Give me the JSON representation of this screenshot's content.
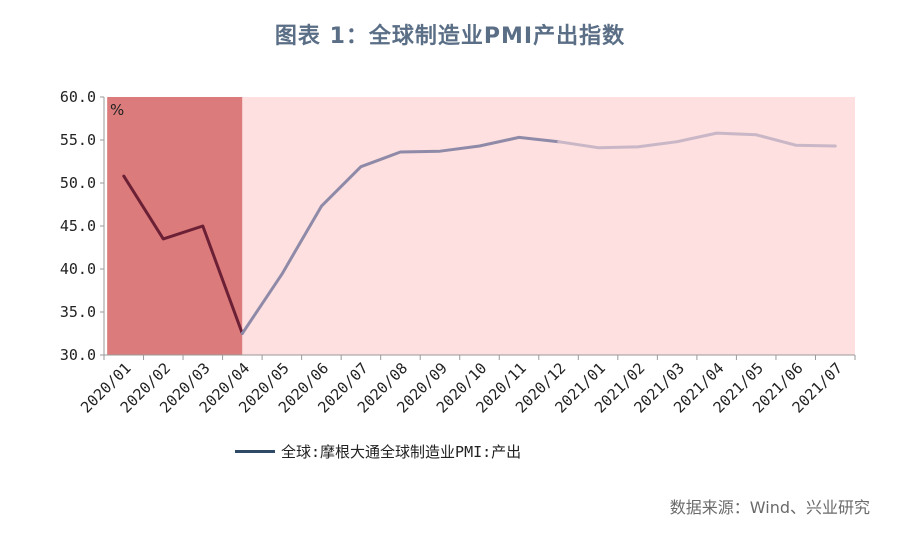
{
  "title": "图表 1：全球制造业PMI产出指数",
  "source": "数据来源：Wind、兴业研究",
  "chart_data": {
    "type": "line",
    "title": "图表 1：全球制造业PMI产出指数",
    "ylabel": "%",
    "ylim": [
      30,
      60
    ],
    "yticks": [
      "30.0",
      "35.0",
      "40.0",
      "45.0",
      "50.0",
      "55.0",
      "60.0"
    ],
    "categories": [
      "2020/01",
      "2020/02",
      "2020/03",
      "2020/04",
      "2020/05",
      "2020/06",
      "2020/07",
      "2020/08",
      "2020/09",
      "2020/10",
      "2020/11",
      "2020/12",
      "2021/01",
      "2021/02",
      "2021/03",
      "2021/04",
      "2021/05",
      "2021/06",
      "2021/07"
    ],
    "series": [
      {
        "name": "全球:摩根大通全球制造业PMI:产出",
        "values": [
          50.8,
          43.5,
          45.0,
          32.5,
          39.4,
          47.3,
          51.9,
          53.6,
          53.7,
          54.3,
          55.3,
          54.8,
          54.1,
          54.2,
          54.8,
          55.8,
          55.6,
          54.4,
          54.3
        ]
      }
    ],
    "shaded_regions": [
      {
        "from": "2020/01",
        "to": "2020/04",
        "color": "#dc7b7b"
      },
      {
        "from": "2020/04",
        "to": "2021/07",
        "color": "#fde0df"
      }
    ],
    "segment_colors": [
      {
        "from": "2020/01",
        "to": "2020/04",
        "color": "#6b2035"
      },
      {
        "from": "2020/04",
        "to": "2020/12",
        "color": "#8f8aa8"
      },
      {
        "from": "2020/12",
        "to": "2021/07",
        "color": "#c9b6c6"
      }
    ],
    "legend_color": "#2e4a66",
    "legend": "bottom-left",
    "grid": false
  }
}
